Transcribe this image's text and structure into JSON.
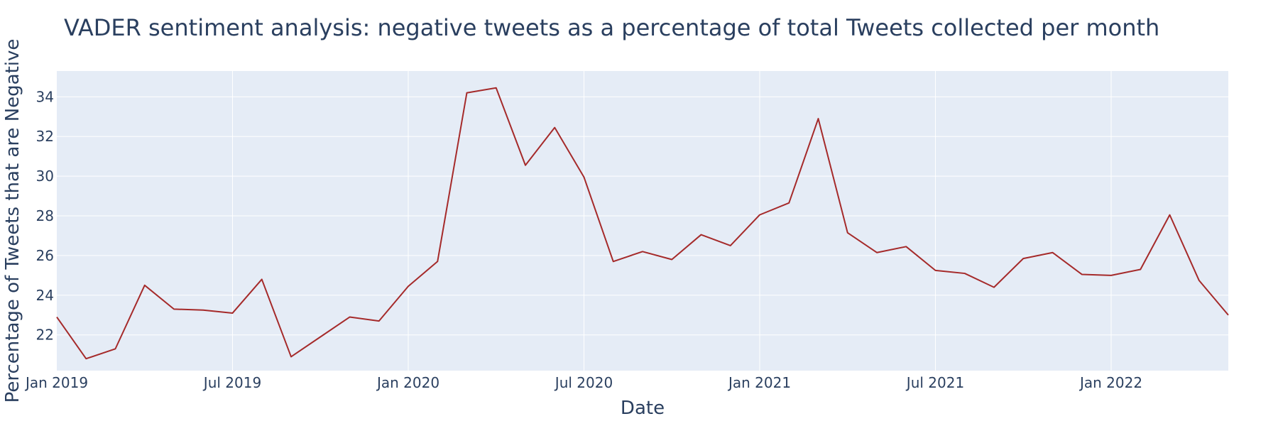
{
  "chart_data": {
    "type": "line",
    "title": "VADER sentiment analysis: negative tweets as a percentage of total Tweets collected per month",
    "xlabel": "Date",
    "ylabel": "Percentage of Tweets that are Negative",
    "xlim": [
      "2019-01",
      "2022-05"
    ],
    "ylim": [
      20.2,
      35.3
    ],
    "grid": true,
    "x_ticks": [
      {
        "date": "2019-01",
        "label": "Jan 2019"
      },
      {
        "date": "2019-07",
        "label": "Jul 2019"
      },
      {
        "date": "2020-01",
        "label": "Jan 2020"
      },
      {
        "date": "2020-07",
        "label": "Jul 2020"
      },
      {
        "date": "2021-01",
        "label": "Jan 2021"
      },
      {
        "date": "2021-07",
        "label": "Jul 2021"
      },
      {
        "date": "2022-01",
        "label": "Jan 2022"
      }
    ],
    "y_ticks": [
      22,
      24,
      26,
      28,
      30,
      32,
      34
    ],
    "colors": {
      "line": "#a52a2a",
      "plot_bg": "#e5ecf6",
      "text": "#2a3f5f",
      "grid": "#ffffff"
    },
    "series": [
      {
        "x": [
          "2019-01",
          "2019-02",
          "2019-03",
          "2019-04",
          "2019-05",
          "2019-06",
          "2019-07",
          "2019-08",
          "2019-09",
          "2019-10",
          "2019-11",
          "2019-12",
          "2020-01",
          "2020-02",
          "2020-03",
          "2020-04",
          "2020-05",
          "2020-06",
          "2020-07",
          "2020-08",
          "2020-09",
          "2020-10",
          "2020-11",
          "2020-12",
          "2021-01",
          "2021-02",
          "2021-03",
          "2021-04",
          "2021-05",
          "2021-06",
          "2021-07",
          "2021-08",
          "2021-09",
          "2021-10",
          "2021-11",
          "2021-12",
          "2022-01",
          "2022-02",
          "2022-03",
          "2022-04",
          "2022-05"
        ],
        "values": [
          22.9,
          20.8,
          21.3,
          24.5,
          23.3,
          23.25,
          23.1,
          24.8,
          20.9,
          21.9,
          22.9,
          22.7,
          24.45,
          25.7,
          34.2,
          34.45,
          30.55,
          32.45,
          29.95,
          25.7,
          26.2,
          25.8,
          27.05,
          26.5,
          28.05,
          28.65,
          32.9,
          27.15,
          26.15,
          26.45,
          25.25,
          25.1,
          24.4,
          25.85,
          26.15,
          25.05,
          25.0,
          25.3,
          28.05,
          24.75,
          23.0
        ]
      }
    ]
  }
}
